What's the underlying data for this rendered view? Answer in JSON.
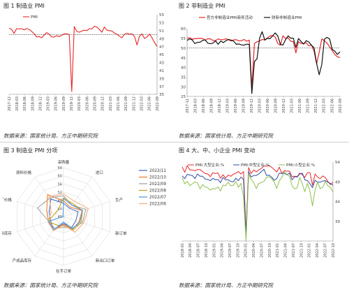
{
  "panels": [
    {
      "title": "图 1 制造业 PMI",
      "source": "数据来源：国家统计局、方正中期研究院",
      "chart_data": {
        "type": "line",
        "x_tick_labels": [
          "2017-12",
          "2018-03",
          "2018-06",
          "2018-09",
          "2018-12",
          "2019-03",
          "2019-06",
          "2019-09",
          "2019-12",
          "2020-03",
          "2020-06",
          "2020-09",
          "2020-12",
          "2021-03",
          "2021-06",
          "2021-09",
          "2021-12",
          "2022-03",
          "2022-06",
          "2022-09"
        ],
        "ylim": [
          35,
          55
        ],
        "yticks": [
          35,
          37,
          39,
          41,
          43,
          45,
          47,
          49,
          51,
          53,
          55
        ],
        "reference_line": 50,
        "grid": false,
        "legend": "top-left",
        "series": [
          {
            "name": "PMI",
            "color": "#e8262a",
            "values": [
              51.6,
              51.3,
              50.3,
              51.5,
              51.4,
              51.5,
              51.2,
              51.5,
              51.3,
              50.8,
              50.2,
              49.4,
              49.5,
              49.2,
              49.9,
              50.5,
              50.1,
              49.4,
              49.4,
              49.7,
              49.5,
              49.8,
              50.2,
              50.2,
              50.0,
              35.7,
              52.0,
              50.8,
              50.6,
              50.9,
              51.1,
              51.0,
              51.5,
              51.4,
              52.1,
              51.9,
              51.3,
              50.6,
              51.9,
              51.1,
              51.0,
              50.9,
              50.4,
              50.1,
              49.6,
              49.2,
              50.1,
              50.3,
              50.1,
              50.2,
              49.5,
              47.4,
              49.6,
              50.2,
              49.0,
              49.4,
              50.1,
              49.2,
              48.0,
              47.0
            ]
          }
        ]
      }
    },
    {
      "title": "图 2 非制造业 PMI",
      "source": "数据来源：国家统计局、方正中期研究院",
      "chart_data": {
        "type": "line",
        "x_tick_labels": [
          "2017-12",
          "2018-03",
          "2018-06",
          "2018-09",
          "2018-12",
          "2019-03",
          "2019-06",
          "2019-09",
          "2019-12",
          "2020-03",
          "2020-06",
          "2020-09",
          "2020-12",
          "2021-03",
          "2021-06",
          "2021-09",
          "2021-12",
          "2022-03",
          "2022-06",
          "2022-09"
        ],
        "ylim": [
          25,
          60
        ],
        "yticks": [
          25,
          30,
          35,
          40,
          45,
          50,
          55,
          60
        ],
        "reference_line": 50,
        "grid": false,
        "legend": "top",
        "series": [
          {
            "name": "官方非制造业PMI商务活动",
            "color": "#e8262a",
            "values": [
              55.0,
              55.3,
              54.6,
              54.8,
              54.9,
              55.0,
              54.9,
              54.0,
              54.8,
              54.7,
              53.9,
              53.8,
              54.7,
              54.3,
              54.3,
              54.8,
              54.3,
              53.6,
              54.2,
              54.3,
              53.7,
              53.8,
              54.4,
              53.5,
              54.1,
              29.6,
              52.3,
              53.2,
              53.6,
              54.4,
              54.2,
              55.2,
              56.2,
              56.4,
              55.7,
              52.4,
              51.4,
              56.3,
              54.9,
              55.2,
              53.5,
              53.3,
              47.5,
              53.2,
              52.4,
              52.3,
              52.7,
              51.1,
              51.6,
              48.4,
              41.9,
              47.8,
              54.7,
              53.8,
              52.6,
              50.6,
              48.7,
              46.7,
              45.5,
              45.0
            ]
          },
          {
            "name": "财新非制造业PMI",
            "color": "#111111",
            "values": [
              53.9,
              54.7,
              54.2,
              52.3,
              52.9,
              53.0,
              53.9,
              54.2,
              52.5,
              52.2,
              52.5,
              53.7,
              51.9,
              53.6,
              52.8,
              53.8,
              54.4,
              54.1,
              53.5,
              51.9,
              52.1,
              51.6,
              51.5,
              52.0,
              51.8,
              26.5,
              43.0,
              44.4,
              55.1,
              58.4,
              54.1,
              55.0,
              54.8,
              56.2,
              57.8,
              56.3,
              52.0,
              51.5,
              54.3,
              56.3,
              55.1,
              55.1,
              50.3,
              54.9,
              53.4,
              52.0,
              53.8,
              53.1,
              51.4,
              50.2,
              42.0,
              36.2,
              41.4,
              54.5,
              55.5,
              54.7,
              49.3,
              48.4,
              46.7,
              48.0
            ]
          }
        ]
      }
    },
    {
      "title": "图 3 制造业 PMI 分项",
      "source": "数据来源：国家统计局、方正中期研究院",
      "chart_data": {
        "type": "radar",
        "axes": [
          "采购量",
          "进口",
          "生产",
          "新订单",
          "新出口订单",
          "在手订单",
          "产成品库存",
          "原材料库存",
          "出厂价格",
          "原料价格"
        ],
        "radial_ticks": [
          40,
          44,
          48,
          52,
          56,
          60,
          64
        ],
        "rlim": [
          40,
          64
        ],
        "legend": "right",
        "series": [
          {
            "name": "2022/11",
            "color": "#4472c4",
            "values": [
              46.5,
              45.0,
              47.5,
              46.4,
              46.7,
              43.4,
              48.1,
              46.7,
              47.4,
              50.7
            ]
          },
          {
            "name": "2022/10",
            "color": "#ed7d31",
            "values": [
              47.7,
              45.7,
              49.6,
              48.1,
              47.6,
              43.9,
              48.0,
              47.7,
              48.7,
              53.3
            ]
          },
          {
            "name": "2022/09",
            "color": "#a5a5a5",
            "values": [
              50.2,
              47.0,
              51.5,
              49.8,
              47.0,
              45.3,
              47.3,
              47.6,
              53.5,
              51.3
            ]
          },
          {
            "name": "2022/08",
            "color": "#c9a227",
            "values": [
              49.2,
              47.8,
              49.8,
              49.2,
              48.1,
              44.6,
              45.2,
              48.0,
              44.5,
              44.3
            ]
          },
          {
            "name": "2022/07",
            "color": "#5b9bd5",
            "values": [
              48.9,
              46.9,
              49.8,
              48.5,
              47.4,
              42.6,
              48.0,
              47.9,
              40.1,
              40.4
            ]
          },
          {
            "name": "2022/06",
            "color": "#f4b183",
            "values": [
              51.1,
              49.2,
              52.8,
              50.4,
              49.5,
              44.2,
              48.6,
              48.1,
              46.3,
              52.0
            ]
          }
        ]
      }
    },
    {
      "title": "图 4 大、中、小企业 PMI 变动",
      "source": "数据来源：国家统计局、方正中期研究院",
      "chart_data": {
        "type": "line",
        "x_tick_labels": [
          "2018-01",
          "2018-04",
          "2018-07",
          "2018-10",
          "2019-01",
          "2019-04",
          "2019-07",
          "2019-10",
          "2020-01",
          "2020-04",
          "2020-07",
          "2020-10",
          "2021-01",
          "2021-04",
          "2021-07",
          "2021-10",
          "2022-01",
          "2022-04",
          "2022-07",
          "2022-10"
        ],
        "ylim": [
          34,
          54
        ],
        "yticks": [
          39,
          44,
          49,
          54
        ],
        "grid": false,
        "legend": "top",
        "series": [
          {
            "name": "PMI:大型企业:%",
            "color": "#e8262a",
            "values": [
              52.8,
              51.4,
              53.1,
              52.0,
              52.0,
              51.8,
              52.1,
              52.1,
              51.6,
              51.1,
              51.0,
              50.3,
              51.3,
              51.1,
              51.2,
              49.9,
              50.8,
              49.9,
              50.7,
              50.4,
              50.9,
              51.2,
              51.6,
              51.0,
              51.6,
              36.2,
              52.6,
              51.1,
              52.0,
              51.5,
              52.0,
              52.4,
              53.0,
              53.0,
              53.1,
              52.7,
              52.1,
              51.5,
              52.7,
              51.1,
              51.8,
              51.7,
              51.7,
              50.3,
              50.4,
              50.3,
              51.2,
              50.8,
              50.1,
              51.3,
              51.3,
              48.1,
              51.0,
              50.2,
              49.8,
              50.5,
              50.1,
              49.1,
              48.3,
              48.9
            ]
          },
          {
            "name": "PMI:中型企业:%",
            "color": "#2f4fa2",
            "values": [
              50.5,
              49.8,
              50.9,
              50.7,
              50.6,
              49.8,
              51.0,
              50.4,
              50.4,
              49.7,
              49.6,
              49.3,
              49.9,
              49.5,
              49.6,
              48.8,
              50.1,
              49.5,
              49.5,
              49.1,
              49.0,
              49.9,
              49.3,
              50.2,
              49.6,
              35.5,
              51.6,
              50.2,
              50.6,
              50.6,
              51.0,
              51.6,
              52.2,
              50.6,
              50.7,
              50.2,
              49.4,
              49.8,
              51.2,
              51.1,
              51.1,
              50.8,
              51.2,
              49.5,
              50.3,
              50.2,
              51.0,
              51.2,
              49.5,
              49.3,
              48.5,
              47.5,
              49.4,
              48.9,
              48.9,
              49.2,
              49.3,
              48.9,
              48.6,
              48.1
            ]
          },
          {
            "name": "PMI:小型企业:%",
            "color": "#8fbf4d",
            "values": [
              50.0,
              48.5,
              49.1,
              48.0,
              48.5,
              49.0,
              48.7,
              47.2,
              48.3,
              47.7,
              47.5,
              46.9,
              47.3,
              47.2,
              47.7,
              46.7,
              48.2,
              48.0,
              48.9,
              48.0,
              48.1,
              49.1,
              47.6,
              48.6,
              45.2,
              34.1,
              51.0,
              49.6,
              48.8,
              47.3,
              48.6,
              48.8,
              49.1,
              50.1,
              50.3,
              49.8,
              49.0,
              47.3,
              49.2,
              50.1,
              51.6,
              50.8,
              50.4,
              48.0,
              47.2,
              47.5,
              50.1,
              48.5,
              46.5,
              48.6,
              46.6,
              42.9,
              46.9,
              48.9,
              47.3,
              47.6,
              49.1,
              48.0,
              47.6,
              46.4
            ]
          }
        ]
      }
    }
  ]
}
